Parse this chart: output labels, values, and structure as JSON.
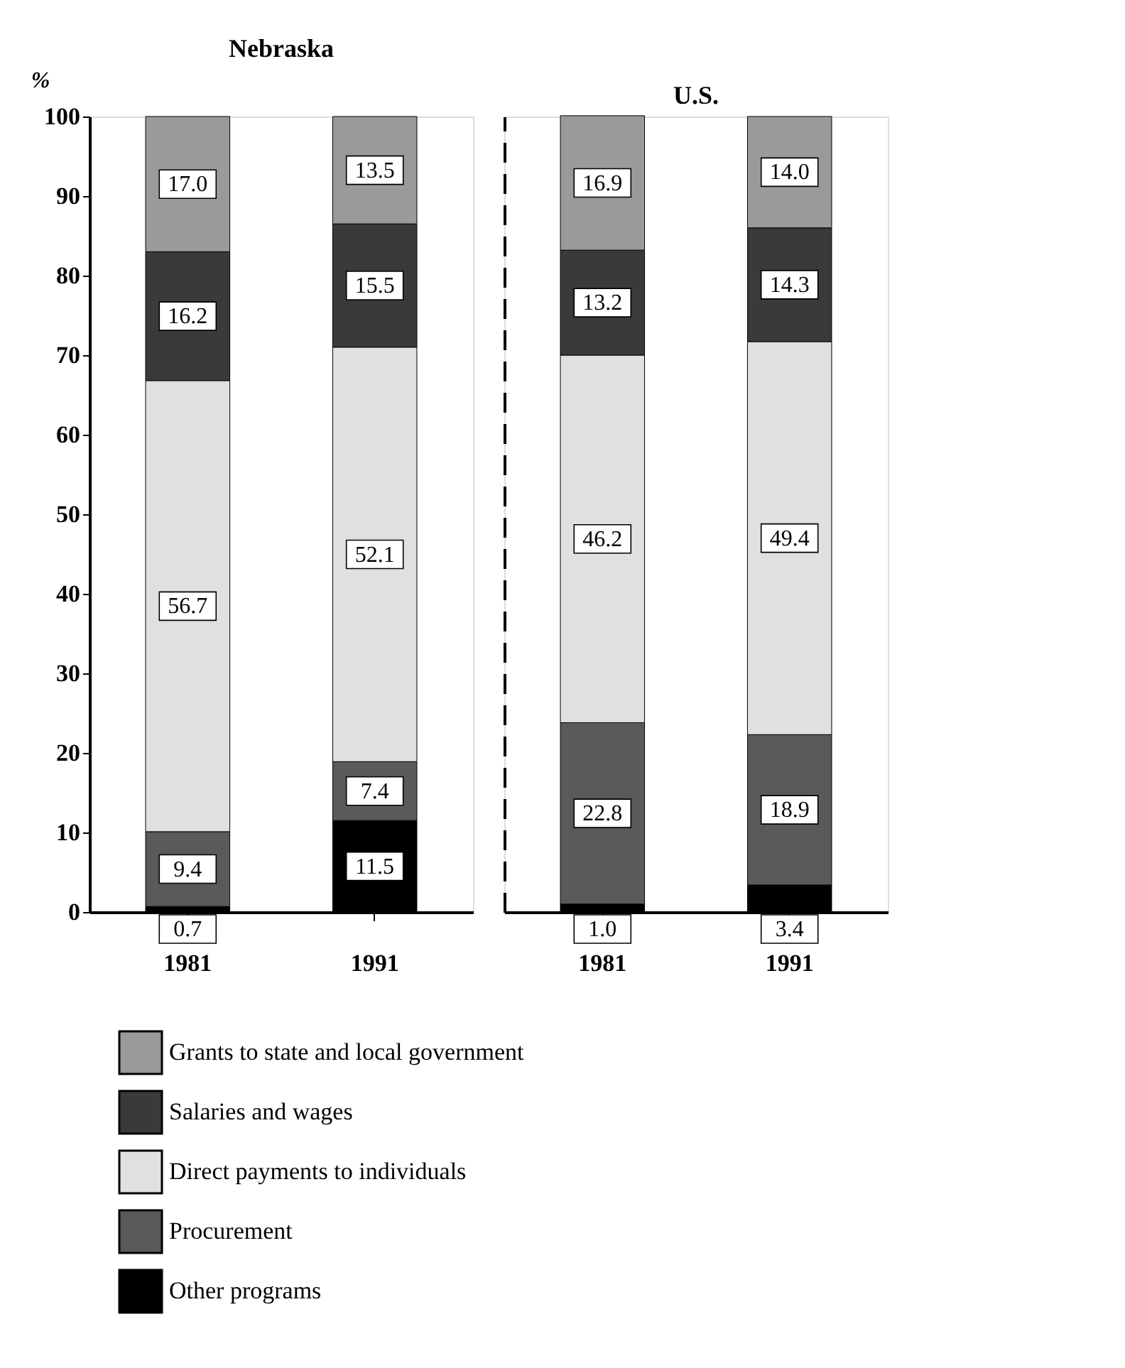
{
  "chart_data": [
    {
      "type": "bar",
      "title": "Nebraska",
      "ylabel": "%",
      "stacked": true,
      "legend": "bottom",
      "grid": false,
      "categories": [
        "1981",
        "1991"
      ],
      "ylim": [
        0,
        100
      ],
      "yticks": [
        0,
        10,
        20,
        30,
        40,
        50,
        60,
        70,
        80,
        90,
        100
      ],
      "series": [
        {
          "name": "Other programs",
          "color": "#000000",
          "values": [
            0.7,
            11.5
          ],
          "value_labels": [
            "0.7",
            "11.5"
          ]
        },
        {
          "name": "Procurement",
          "color": "#5a5a5a",
          "values": [
            9.4,
            7.4
          ],
          "value_labels": [
            "9.4",
            "7.4"
          ]
        },
        {
          "name": "Direct payments to individuals",
          "color": "#e0e0e0",
          "values": [
            56.7,
            52.1
          ],
          "value_labels": [
            "56.7",
            "52.1"
          ]
        },
        {
          "name": "Salaries and wages",
          "color": "#3a3a3a",
          "values": [
            16.2,
            15.5
          ],
          "value_labels": [
            "16.2",
            "15.5"
          ]
        },
        {
          "name": "Grants to state and local government",
          "color": "#9a9a9a",
          "values": [
            17.0,
            13.5
          ],
          "value_labels": [
            "17.0",
            "13.5"
          ]
        }
      ]
    },
    {
      "type": "bar",
      "title": "U.S.",
      "stacked": true,
      "legend": "bottom",
      "grid": false,
      "tick_labels": "x",
      "categories": [
        "1981",
        "1991"
      ],
      "ylim": [
        0,
        100
      ],
      "yticks": [
        0,
        10,
        20,
        30,
        40,
        50,
        60,
        70,
        80,
        90,
        100
      ],
      "series": [
        {
          "name": "Other programs",
          "color": "#000000",
          "values": [
            1.0,
            3.4
          ],
          "value_labels": [
            "1.0",
            "3.4"
          ]
        },
        {
          "name": "Procurement",
          "color": "#5a5a5a",
          "values": [
            22.8,
            18.9
          ],
          "value_labels": [
            "22.8",
            "18.9"
          ]
        },
        {
          "name": "Direct payments to individuals",
          "color": "#e0e0e0",
          "values": [
            46.2,
            49.4
          ],
          "value_labels": [
            "46.2",
            "49.4"
          ]
        },
        {
          "name": "Salaries and wages",
          "color": "#3a3a3a",
          "values": [
            13.2,
            14.3
          ],
          "value_labels": [
            "13.2",
            "14.3"
          ]
        },
        {
          "name": "Grants to state and local government",
          "color": "#9a9a9a",
          "values": [
            16.9,
            14.0
          ],
          "value_labels": [
            "16.9",
            "14.0"
          ]
        }
      ]
    }
  ]
}
